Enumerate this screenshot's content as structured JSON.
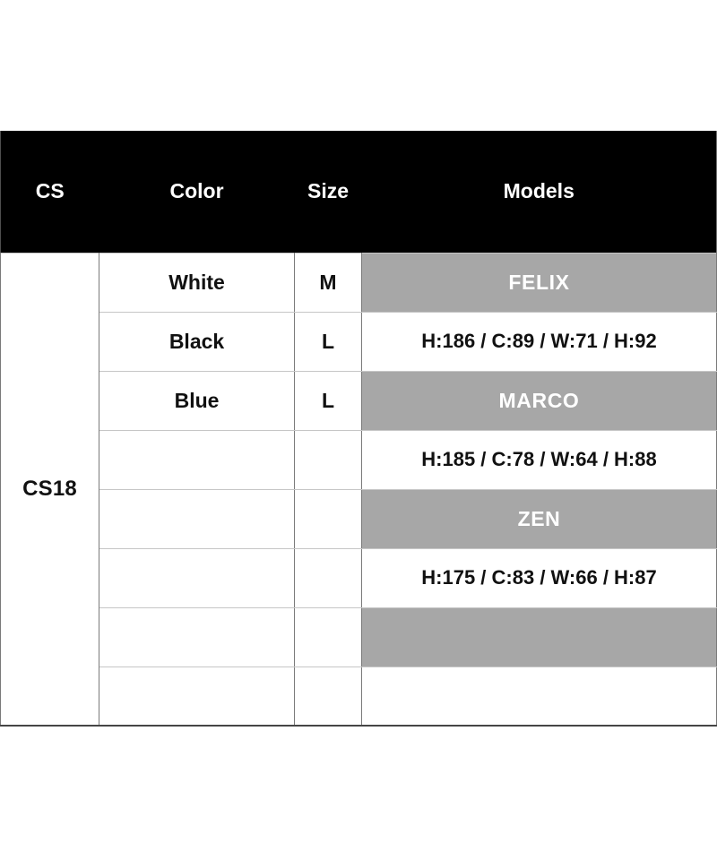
{
  "table": {
    "columns": [
      {
        "id": "cs",
        "label": "CS"
      },
      {
        "id": "color",
        "label": "Color"
      },
      {
        "id": "size",
        "label": "Size"
      },
      {
        "id": "models",
        "label": "Models"
      }
    ],
    "cs_code": "CS18",
    "rows": [
      {
        "color": "White",
        "size": "M",
        "model": "FELIX",
        "variant": "model-name"
      },
      {
        "color": "Black",
        "size": "L",
        "model": "H:186 / C:89 / W:71 / H:92",
        "variant": "measurements"
      },
      {
        "color": "Blue",
        "size": "L",
        "model": "MARCO",
        "variant": "model-name"
      },
      {
        "color": "",
        "size": "",
        "model": "H:185 / C:78 / W:64 / H:88",
        "variant": "measurements"
      },
      {
        "color": "",
        "size": "",
        "model": "ZEN",
        "variant": "model-name"
      },
      {
        "color": "",
        "size": "",
        "model": "H:175 / C:83 / W:66 / H:87",
        "variant": "measurements"
      },
      {
        "color": "",
        "size": "",
        "model": "",
        "variant": "model-name"
      },
      {
        "color": "",
        "size": "",
        "model": "",
        "variant": "measurements"
      }
    ],
    "colors": {
      "header_bg": "#000000",
      "header_text": "#ffffff",
      "model_band_bg": "#a7a7a7",
      "model_band_text": "#ffffff",
      "body_text": "#111111"
    }
  }
}
